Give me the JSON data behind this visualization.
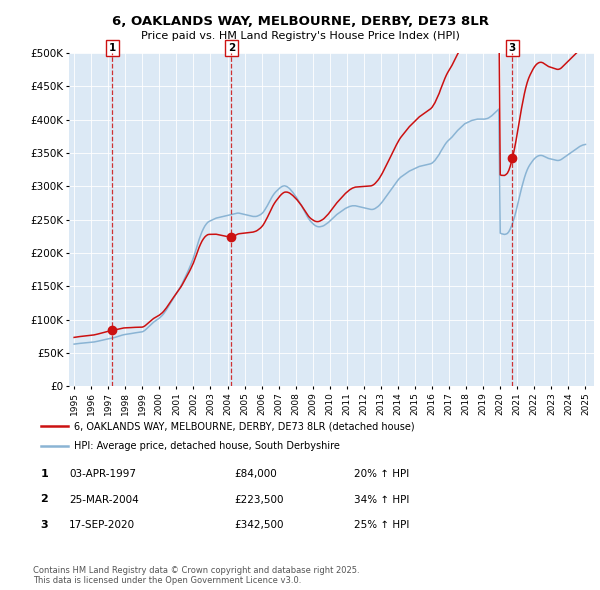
{
  "title": "6, OAKLANDS WAY, MELBOURNE, DERBY, DE73 8LR",
  "subtitle": "Price paid vs. HM Land Registry's House Price Index (HPI)",
  "bg_color": "#dce9f5",
  "ylim": [
    0,
    500000
  ],
  "yticks": [
    0,
    50000,
    100000,
    150000,
    200000,
    250000,
    300000,
    350000,
    400000,
    450000,
    500000
  ],
  "ytick_labels": [
    "£0",
    "£50K",
    "£100K",
    "£150K",
    "£200K",
    "£250K",
    "£300K",
    "£350K",
    "£400K",
    "£450K",
    "£500K"
  ],
  "xlim_start": 1994.7,
  "xlim_end": 2025.5,
  "sale_dates": [
    1997.25,
    2004.23,
    2020.71
  ],
  "sale_prices": [
    84000,
    223500,
    342500
  ],
  "sale_labels": [
    "1",
    "2",
    "3"
  ],
  "hpi_color": "#8ab4d4",
  "price_color": "#cc1111",
  "marker_color": "#cc1111",
  "vline_color": "#cc1111",
  "legend_property_label": "6, OAKLANDS WAY, MELBOURNE, DERBY, DE73 8LR (detached house)",
  "legend_hpi_label": "HPI: Average price, detached house, South Derbyshire",
  "table_entries": [
    {
      "num": "1",
      "date": "03-APR-1997",
      "price": "£84,000",
      "change": "20% ↑ HPI"
    },
    {
      "num": "2",
      "date": "25-MAR-2004",
      "price": "£223,500",
      "change": "34% ↑ HPI"
    },
    {
      "num": "3",
      "date": "17-SEP-2020",
      "price": "£342,500",
      "change": "25% ↑ HPI"
    }
  ],
  "footer": "Contains HM Land Registry data © Crown copyright and database right 2025.\nThis data is licensed under the Open Government Licence v3.0.",
  "hpi_data_x": [
    1995.0,
    1995.083,
    1995.167,
    1995.25,
    1995.333,
    1995.417,
    1995.5,
    1995.583,
    1995.667,
    1995.75,
    1995.833,
    1995.917,
    1996.0,
    1996.083,
    1996.167,
    1996.25,
    1996.333,
    1996.417,
    1996.5,
    1996.583,
    1996.667,
    1996.75,
    1996.833,
    1996.917,
    1997.0,
    1997.083,
    1997.167,
    1997.25,
    1997.333,
    1997.417,
    1997.5,
    1997.583,
    1997.667,
    1997.75,
    1997.833,
    1997.917,
    1998.0,
    1998.083,
    1998.167,
    1998.25,
    1998.333,
    1998.417,
    1998.5,
    1998.583,
    1998.667,
    1998.75,
    1998.833,
    1998.917,
    1999.0,
    1999.083,
    1999.167,
    1999.25,
    1999.333,
    1999.417,
    1999.5,
    1999.583,
    1999.667,
    1999.75,
    1999.833,
    1999.917,
    2000.0,
    2000.083,
    2000.167,
    2000.25,
    2000.333,
    2000.417,
    2000.5,
    2000.583,
    2000.667,
    2000.75,
    2000.833,
    2000.917,
    2001.0,
    2001.083,
    2001.167,
    2001.25,
    2001.333,
    2001.417,
    2001.5,
    2001.583,
    2001.667,
    2001.75,
    2001.833,
    2001.917,
    2002.0,
    2002.083,
    2002.167,
    2002.25,
    2002.333,
    2002.417,
    2002.5,
    2002.583,
    2002.667,
    2002.75,
    2002.833,
    2002.917,
    2003.0,
    2003.083,
    2003.167,
    2003.25,
    2003.333,
    2003.417,
    2003.5,
    2003.583,
    2003.667,
    2003.75,
    2003.833,
    2003.917,
    2004.0,
    2004.083,
    2004.167,
    2004.25,
    2004.333,
    2004.417,
    2004.5,
    2004.583,
    2004.667,
    2004.75,
    2004.833,
    2004.917,
    2005.0,
    2005.083,
    2005.167,
    2005.25,
    2005.333,
    2005.417,
    2005.5,
    2005.583,
    2005.667,
    2005.75,
    2005.833,
    2005.917,
    2006.0,
    2006.083,
    2006.167,
    2006.25,
    2006.333,
    2006.417,
    2006.5,
    2006.583,
    2006.667,
    2006.75,
    2006.833,
    2006.917,
    2007.0,
    2007.083,
    2007.167,
    2007.25,
    2007.333,
    2007.417,
    2007.5,
    2007.583,
    2007.667,
    2007.75,
    2007.833,
    2007.917,
    2008.0,
    2008.083,
    2008.167,
    2008.25,
    2008.333,
    2008.417,
    2008.5,
    2008.583,
    2008.667,
    2008.75,
    2008.833,
    2008.917,
    2009.0,
    2009.083,
    2009.167,
    2009.25,
    2009.333,
    2009.417,
    2009.5,
    2009.583,
    2009.667,
    2009.75,
    2009.833,
    2009.917,
    2010.0,
    2010.083,
    2010.167,
    2010.25,
    2010.333,
    2010.417,
    2010.5,
    2010.583,
    2010.667,
    2010.75,
    2010.833,
    2010.917,
    2011.0,
    2011.083,
    2011.167,
    2011.25,
    2011.333,
    2011.417,
    2011.5,
    2011.583,
    2011.667,
    2011.75,
    2011.833,
    2011.917,
    2012.0,
    2012.083,
    2012.167,
    2012.25,
    2012.333,
    2012.417,
    2012.5,
    2012.583,
    2012.667,
    2012.75,
    2012.833,
    2012.917,
    2013.0,
    2013.083,
    2013.167,
    2013.25,
    2013.333,
    2013.417,
    2013.5,
    2013.583,
    2013.667,
    2013.75,
    2013.833,
    2013.917,
    2014.0,
    2014.083,
    2014.167,
    2014.25,
    2014.333,
    2014.417,
    2014.5,
    2014.583,
    2014.667,
    2014.75,
    2014.833,
    2014.917,
    2015.0,
    2015.083,
    2015.167,
    2015.25,
    2015.333,
    2015.417,
    2015.5,
    2015.583,
    2015.667,
    2015.75,
    2015.833,
    2015.917,
    2016.0,
    2016.083,
    2016.167,
    2016.25,
    2016.333,
    2016.417,
    2016.5,
    2016.583,
    2016.667,
    2016.75,
    2016.833,
    2016.917,
    2017.0,
    2017.083,
    2017.167,
    2017.25,
    2017.333,
    2017.417,
    2017.5,
    2017.583,
    2017.667,
    2017.75,
    2017.833,
    2017.917,
    2018.0,
    2018.083,
    2018.167,
    2018.25,
    2018.333,
    2018.417,
    2018.5,
    2018.583,
    2018.667,
    2018.75,
    2018.833,
    2018.917,
    2019.0,
    2019.083,
    2019.167,
    2019.25,
    2019.333,
    2019.417,
    2019.5,
    2019.583,
    2019.667,
    2019.75,
    2019.833,
    2019.917,
    2020.0,
    2020.083,
    2020.167,
    2020.25,
    2020.333,
    2020.417,
    2020.5,
    2020.583,
    2020.667,
    2020.75,
    2020.833,
    2020.917,
    2021.0,
    2021.083,
    2021.167,
    2021.25,
    2021.333,
    2021.417,
    2021.5,
    2021.583,
    2021.667,
    2021.75,
    2021.833,
    2021.917,
    2022.0,
    2022.083,
    2022.167,
    2022.25,
    2022.333,
    2022.417,
    2022.5,
    2022.583,
    2022.667,
    2022.75,
    2022.833,
    2022.917,
    2023.0,
    2023.083,
    2023.167,
    2023.25,
    2023.333,
    2023.417,
    2023.5,
    2023.583,
    2023.667,
    2023.75,
    2023.833,
    2023.917,
    2024.0,
    2024.083,
    2024.167,
    2024.25,
    2024.333,
    2024.417,
    2024.5,
    2024.583,
    2024.667,
    2024.75,
    2024.833,
    2024.917,
    2025.0
  ],
  "hpi_data_y": [
    63500,
    63800,
    64100,
    64300,
    64600,
    64800,
    65000,
    65200,
    65400,
    65600,
    65700,
    65900,
    66100,
    66400,
    66700,
    67100,
    67600,
    68000,
    68500,
    69000,
    69600,
    70100,
    70600,
    71000,
    71400,
    71800,
    72100,
    72500,
    73100,
    73800,
    74500,
    75200,
    75900,
    76500,
    77100,
    77600,
    78000,
    78300,
    78600,
    78900,
    79300,
    79700,
    80100,
    80400,
    80700,
    81000,
    81200,
    81500,
    82000,
    83000,
    84500,
    86500,
    88500,
    90500,
    92500,
    94500,
    96500,
    98000,
    99500,
    101000,
    102500,
    104500,
    106500,
    109000,
    112000,
    115000,
    118500,
    122000,
    125500,
    129000,
    132500,
    136000,
    139500,
    143000,
    146500,
    150000,
    154000,
    158500,
    163000,
    167500,
    172000,
    177000,
    182000,
    187500,
    193000,
    199500,
    206500,
    213500,
    220500,
    226500,
    232000,
    236500,
    240500,
    243500,
    246000,
    247500,
    248500,
    249500,
    250500,
    251500,
    252500,
    253000,
    253500,
    254000,
    254500,
    255000,
    255500,
    256000,
    256500,
    257000,
    257500,
    258000,
    258500,
    259000,
    259500,
    260000,
    260000,
    259500,
    259000,
    258500,
    258000,
    257500,
    257000,
    256500,
    256000,
    255500,
    255000,
    255000,
    255000,
    255500,
    256500,
    257500,
    259000,
    261000,
    264000,
    267500,
    271000,
    275000,
    279000,
    283000,
    286500,
    289500,
    292000,
    294000,
    296000,
    298000,
    299500,
    300500,
    301000,
    300500,
    299500,
    298000,
    296000,
    293500,
    291000,
    288000,
    285000,
    282000,
    278500,
    275000,
    271500,
    267500,
    263500,
    259500,
    255500,
    252000,
    249000,
    246500,
    244500,
    242500,
    241000,
    240000,
    239500,
    239500,
    240000,
    240500,
    241500,
    243000,
    244500,
    246000,
    248000,
    250000,
    252000,
    254000,
    256000,
    258000,
    259500,
    261000,
    262500,
    264000,
    265500,
    267000,
    268000,
    269000,
    270000,
    270500,
    271000,
    271000,
    271000,
    270500,
    270000,
    269500,
    269000,
    268500,
    268000,
    267500,
    267000,
    266500,
    266000,
    265500,
    265500,
    266000,
    267000,
    268500,
    270000,
    272000,
    274500,
    277000,
    280000,
    283000,
    286000,
    289000,
    292000,
    295000,
    298000,
    301000,
    304000,
    307000,
    309500,
    312000,
    314000,
    315500,
    317000,
    318500,
    320000,
    321500,
    323000,
    324000,
    325000,
    326000,
    327000,
    328000,
    329000,
    330000,
    330500,
    331000,
    331500,
    332000,
    332500,
    333000,
    333500,
    334000,
    335000,
    337000,
    339000,
    342000,
    345000,
    348000,
    352000,
    355500,
    359000,
    362500,
    365500,
    368000,
    370000,
    372000,
    374000,
    376500,
    379000,
    381500,
    384000,
    386000,
    388000,
    390000,
    392000,
    394000,
    395000,
    396000,
    397000,
    398000,
    399000,
    399500,
    400000,
    400500,
    401000,
    401000,
    401000,
    401000,
    401000,
    401000,
    401500,
    402000,
    403000,
    404500,
    406000,
    408000,
    410000,
    412000,
    414000,
    416000,
    230000,
    229000,
    228500,
    228000,
    228500,
    229500,
    232000,
    236000,
    241000,
    247000,
    254000,
    262000,
    271000,
    280000,
    289000,
    297500,
    305500,
    313000,
    319500,
    325000,
    329500,
    333000,
    336000,
    339000,
    341500,
    343500,
    345000,
    346000,
    346500,
    346500,
    346000,
    345000,
    344000,
    343000,
    342000,
    341500,
    341000,
    340500,
    340000,
    339500,
    339000,
    339000,
    339500,
    340500,
    342000,
    343500,
    345000,
    346500,
    348000,
    349500,
    351000,
    352500,
    354000,
    355500,
    357000,
    358500,
    360000,
    361000,
    362000,
    362500,
    363000
  ]
}
